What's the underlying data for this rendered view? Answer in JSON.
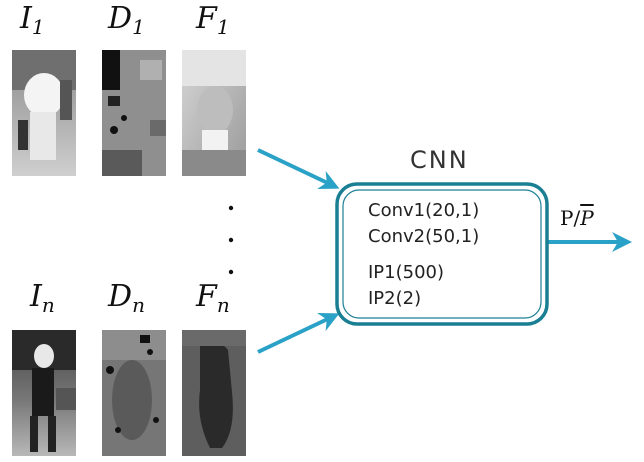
{
  "inputs": {
    "row1": {
      "image_label": "I",
      "image_sub": "1",
      "depth_label": "D",
      "depth_sub": "1",
      "flow_label": "F",
      "flow_sub": "1"
    },
    "rown": {
      "image_label": "I",
      "image_sub": "n",
      "depth_label": "D",
      "depth_sub": "n",
      "flow_label": "F",
      "flow_sub": "n"
    },
    "ellipsis": "..."
  },
  "cnn": {
    "title": "CNN",
    "layers": [
      "Conv1(20,1)",
      "Conv2(50,1)",
      "IP1(500)",
      "IP2(2)"
    ]
  },
  "output": {
    "label_p": "P/",
    "label_pbar": "P"
  },
  "colors": {
    "arrow": "#2aa1c6",
    "box_border": "#1b7f94"
  }
}
